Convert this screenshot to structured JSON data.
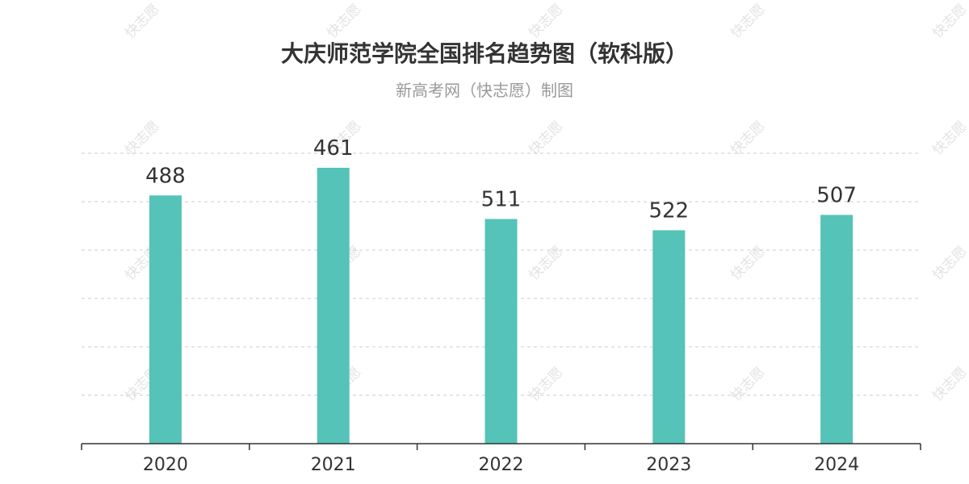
{
  "chart_data": {
    "type": "bar",
    "title": "大庆师范学院全国排名趋势图（软科版）",
    "subtitle": "新高考网（快志愿）制图",
    "categories": [
      "2020",
      "2021",
      "2022",
      "2023",
      "2024"
    ],
    "values": [
      488,
      461,
      511,
      522,
      507
    ],
    "y_inverted": true,
    "grid": true,
    "bar_color": "#55c3b7",
    "watermark": "快志愿"
  }
}
